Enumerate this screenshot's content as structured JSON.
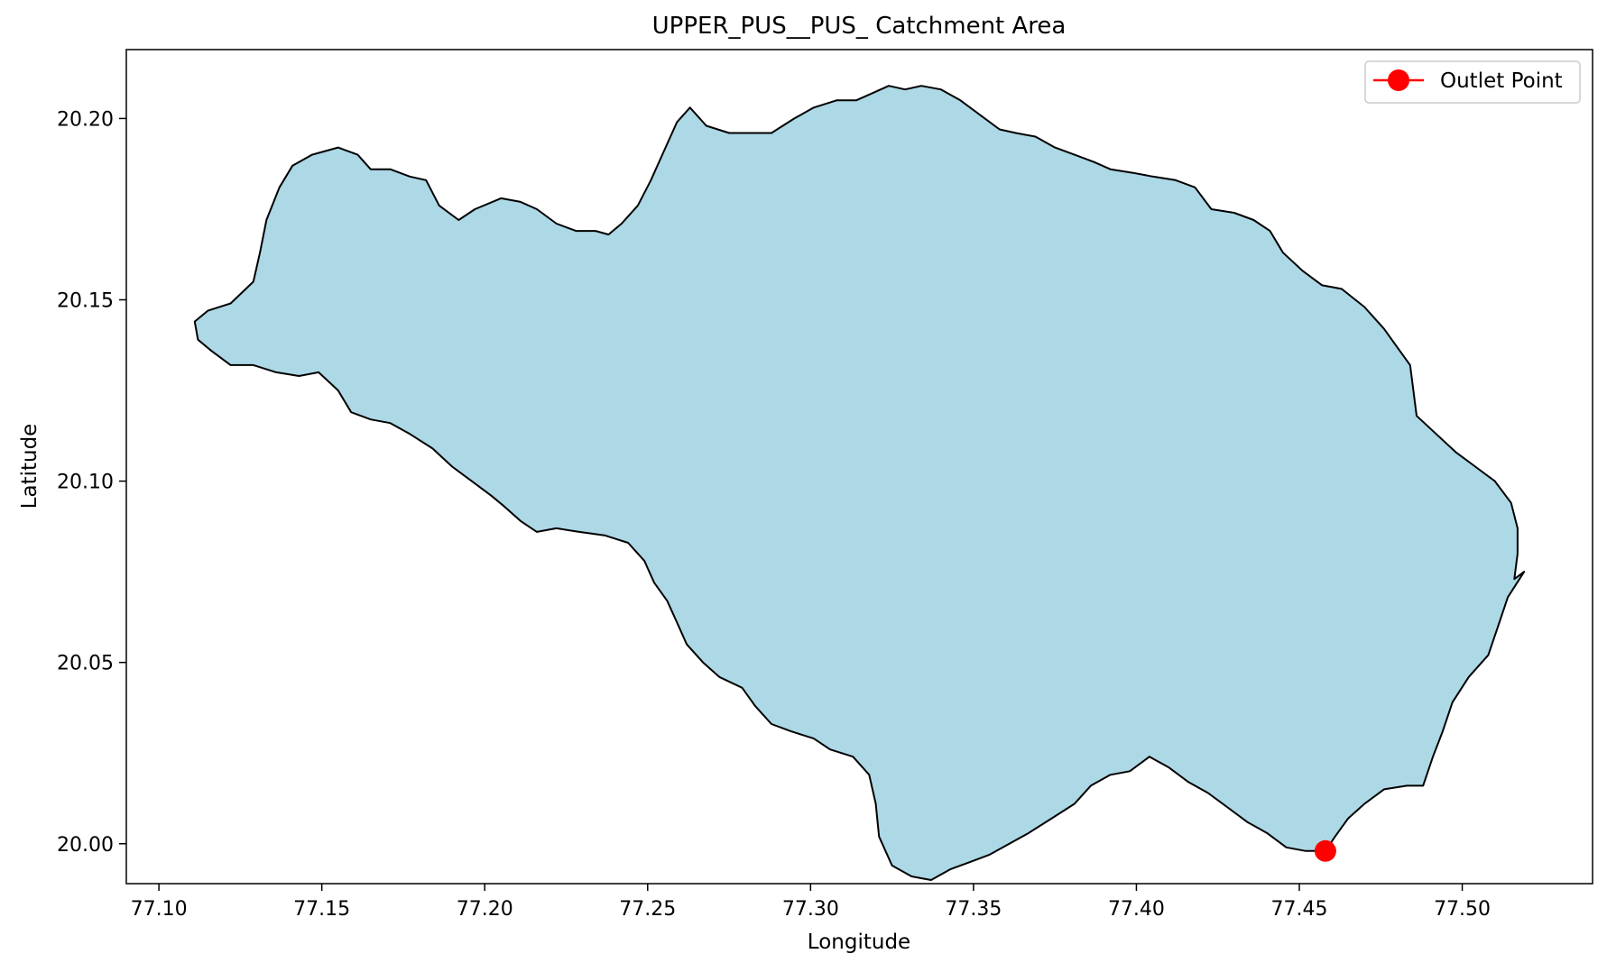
{
  "chart_data": {
    "type": "map",
    "title": "UPPER_PUS__PUS_ Catchment Area",
    "xlabel": "Longitude",
    "ylabel": "Latitude",
    "xlim": [
      77.09,
      77.54
    ],
    "ylim": [
      19.989,
      20.219
    ],
    "xticks": [
      77.1,
      77.15,
      77.2,
      77.25,
      77.3,
      77.35,
      77.4,
      77.45,
      77.5
    ],
    "xtick_labels": [
      "77.10",
      "77.15",
      "77.20",
      "77.25",
      "77.30",
      "77.35",
      "77.40",
      "77.45",
      "77.50"
    ],
    "yticks": [
      20.0,
      20.05,
      20.1,
      20.15,
      20.2
    ],
    "ytick_labels": [
      "20.00",
      "20.05",
      "20.10",
      "20.15",
      "20.20"
    ],
    "grid": false,
    "legend": {
      "position": "top-right",
      "entries": [
        {
          "label": "Outlet Point",
          "marker": "circle",
          "color": "#ff0000"
        }
      ]
    },
    "catchment": {
      "fill": "#add8e6",
      "edge": "#000000",
      "boundary": [
        [
          77.111,
          20.144
        ],
        [
          77.115,
          20.147
        ],
        [
          77.122,
          20.149
        ],
        [
          77.129,
          20.155
        ],
        [
          77.131,
          20.163
        ],
        [
          77.133,
          20.172
        ],
        [
          77.137,
          20.181
        ],
        [
          77.141,
          20.187
        ],
        [
          77.147,
          20.19
        ],
        [
          77.155,
          20.192
        ],
        [
          77.161,
          20.19
        ],
        [
          77.165,
          20.186
        ],
        [
          77.171,
          20.186
        ],
        [
          77.177,
          20.184
        ],
        [
          77.182,
          20.183
        ],
        [
          77.186,
          20.176
        ],
        [
          77.192,
          20.172
        ],
        [
          77.197,
          20.175
        ],
        [
          77.205,
          20.178
        ],
        [
          77.211,
          20.177
        ],
        [
          77.216,
          20.175
        ],
        [
          77.222,
          20.171
        ],
        [
          77.228,
          20.169
        ],
        [
          77.234,
          20.169
        ],
        [
          77.238,
          20.168
        ],
        [
          77.242,
          20.171
        ],
        [
          77.247,
          20.176
        ],
        [
          77.251,
          20.183
        ],
        [
          77.255,
          20.191
        ],
        [
          77.259,
          20.199
        ],
        [
          77.263,
          20.203
        ],
        [
          77.268,
          20.198
        ],
        [
          77.275,
          20.196
        ],
        [
          77.282,
          20.196
        ],
        [
          77.288,
          20.196
        ],
        [
          77.295,
          20.2
        ],
        [
          77.301,
          20.203
        ],
        [
          77.308,
          20.205
        ],
        [
          77.314,
          20.205
        ],
        [
          77.319,
          20.207
        ],
        [
          77.324,
          20.209
        ],
        [
          77.329,
          20.208
        ],
        [
          77.334,
          20.209
        ],
        [
          77.34,
          20.208
        ],
        [
          77.346,
          20.205
        ],
        [
          77.352,
          20.201
        ],
        [
          77.358,
          20.197
        ],
        [
          77.363,
          20.196
        ],
        [
          77.369,
          20.195
        ],
        [
          77.375,
          20.192
        ],
        [
          77.381,
          20.19
        ],
        [
          77.387,
          20.188
        ],
        [
          77.392,
          20.186
        ],
        [
          77.399,
          20.185
        ],
        [
          77.405,
          20.184
        ],
        [
          77.412,
          20.183
        ],
        [
          77.418,
          20.181
        ],
        [
          77.423,
          20.175
        ],
        [
          77.43,
          20.174
        ],
        [
          77.436,
          20.172
        ],
        [
          77.441,
          20.169
        ],
        [
          77.445,
          20.163
        ],
        [
          77.451,
          20.158
        ],
        [
          77.457,
          20.154
        ],
        [
          77.463,
          20.153
        ],
        [
          77.47,
          20.148
        ],
        [
          77.476,
          20.142
        ],
        [
          77.48,
          20.137
        ],
        [
          77.484,
          20.132
        ],
        [
          77.485,
          20.125
        ],
        [
          77.486,
          20.118
        ],
        [
          77.492,
          20.113
        ],
        [
          77.498,
          20.108
        ],
        [
          77.504,
          20.104
        ],
        [
          77.51,
          20.1
        ],
        [
          77.515,
          20.094
        ],
        [
          77.517,
          20.087
        ],
        [
          77.517,
          20.08
        ],
        [
          77.516,
          20.073
        ],
        [
          77.519,
          20.075
        ],
        [
          77.514,
          20.068
        ],
        [
          77.511,
          20.06
        ],
        [
          77.508,
          20.052
        ],
        [
          77.502,
          20.046
        ],
        [
          77.497,
          20.039
        ],
        [
          77.494,
          20.031
        ],
        [
          77.491,
          20.024
        ],
        [
          77.488,
          20.016
        ],
        [
          77.483,
          20.016
        ],
        [
          77.476,
          20.015
        ],
        [
          77.47,
          20.011
        ],
        [
          77.465,
          20.007
        ],
        [
          77.461,
          20.002
        ],
        [
          77.458,
          19.998
        ],
        [
          77.452,
          19.998
        ],
        [
          77.446,
          19.999
        ],
        [
          77.44,
          20.003
        ],
        [
          77.434,
          20.006
        ],
        [
          77.428,
          20.01
        ],
        [
          77.422,
          20.014
        ],
        [
          77.416,
          20.017
        ],
        [
          77.41,
          20.021
        ],
        [
          77.404,
          20.024
        ],
        [
          77.398,
          20.02
        ],
        [
          77.392,
          20.019
        ],
        [
          77.386,
          20.016
        ],
        [
          77.381,
          20.011
        ],
        [
          77.374,
          20.007
        ],
        [
          77.367,
          20.003
        ],
        [
          77.361,
          20.0
        ],
        [
          77.355,
          19.997
        ],
        [
          77.349,
          19.995
        ],
        [
          77.343,
          19.993
        ],
        [
          77.337,
          19.99
        ],
        [
          77.331,
          19.991
        ],
        [
          77.325,
          19.994
        ],
        [
          77.321,
          20.002
        ],
        [
          77.32,
          20.011
        ],
        [
          77.318,
          20.019
        ],
        [
          77.313,
          20.024
        ],
        [
          77.306,
          20.026
        ],
        [
          77.301,
          20.029
        ],
        [
          77.294,
          20.031
        ],
        [
          77.288,
          20.033
        ],
        [
          77.283,
          20.038
        ],
        [
          77.279,
          20.043
        ],
        [
          77.272,
          20.046
        ],
        [
          77.267,
          20.05
        ],
        [
          77.262,
          20.055
        ],
        [
          77.259,
          20.061
        ],
        [
          77.256,
          20.067
        ],
        [
          77.252,
          20.072
        ],
        [
          77.249,
          20.078
        ],
        [
          77.244,
          20.083
        ],
        [
          77.237,
          20.085
        ],
        [
          77.229,
          20.086
        ],
        [
          77.222,
          20.087
        ],
        [
          77.216,
          20.086
        ],
        [
          77.211,
          20.089
        ],
        [
          77.206,
          20.093
        ],
        [
          77.202,
          20.096
        ],
        [
          77.196,
          20.1
        ],
        [
          77.19,
          20.104
        ],
        [
          77.184,
          20.109
        ],
        [
          77.177,
          20.113
        ],
        [
          77.171,
          20.116
        ],
        [
          77.165,
          20.117
        ],
        [
          77.159,
          20.119
        ],
        [
          77.155,
          20.125
        ],
        [
          77.149,
          20.13
        ],
        [
          77.143,
          20.129
        ],
        [
          77.136,
          20.13
        ],
        [
          77.129,
          20.132
        ],
        [
          77.122,
          20.132
        ],
        [
          77.116,
          20.136
        ],
        [
          77.112,
          20.139
        ]
      ]
    },
    "outlet_point": {
      "label": "Outlet Point",
      "x": 77.458,
      "y": 19.998,
      "color": "#ff0000"
    }
  }
}
